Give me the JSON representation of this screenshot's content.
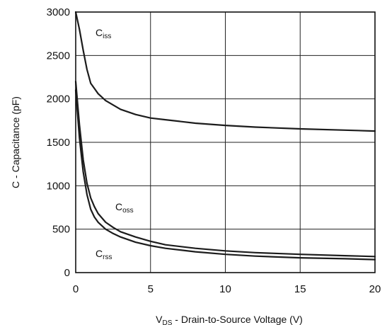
{
  "chart_data": {
    "type": "line",
    "title": "",
    "xlabel": {
      "main": "V",
      "sub": "DS",
      "rest": " - Drain-to-Source Voltage (V)"
    },
    "ylabel": "C - Capacitance (pF)",
    "xlim": [
      0,
      20
    ],
    "ylim": [
      0,
      3000
    ],
    "xticks": [
      0,
      5,
      10,
      15,
      20
    ],
    "yticks": [
      0,
      500,
      1000,
      1500,
      2000,
      2500,
      3000
    ],
    "grid": true,
    "legend": "none",
    "series": [
      {
        "label": {
          "main": "C",
          "sub": "iss"
        },
        "x": [
          0,
          0.25,
          0.5,
          0.75,
          1,
          1.5,
          2,
          3,
          4,
          5,
          6,
          8,
          10,
          12,
          15,
          18,
          20
        ],
        "y": [
          3000,
          2800,
          2560,
          2340,
          2180,
          2060,
          1980,
          1880,
          1820,
          1780,
          1760,
          1720,
          1695,
          1675,
          1655,
          1640,
          1630
        ]
      },
      {
        "label": {
          "main": "C",
          "sub": "oss"
        },
        "x": [
          0,
          0.25,
          0.5,
          0.75,
          1,
          1.25,
          1.5,
          2,
          2.5,
          3,
          4,
          5,
          6,
          8,
          10,
          12,
          15,
          18,
          20
        ],
        "y": [
          2200,
          1700,
          1300,
          1030,
          860,
          760,
          680,
          580,
          520,
          470,
          410,
          360,
          320,
          280,
          250,
          230,
          210,
          195,
          185
        ]
      },
      {
        "label": {
          "main": "C",
          "sub": "rss"
        },
        "x": [
          0,
          0.25,
          0.5,
          0.75,
          1,
          1.25,
          1.5,
          2,
          2.5,
          3,
          4,
          5,
          6,
          8,
          10,
          12,
          15,
          18,
          20
        ],
        "y": [
          2100,
          1550,
          1160,
          900,
          730,
          640,
          580,
          500,
          450,
          410,
          350,
          310,
          280,
          240,
          210,
          190,
          170,
          160,
          150
        ]
      }
    ]
  }
}
